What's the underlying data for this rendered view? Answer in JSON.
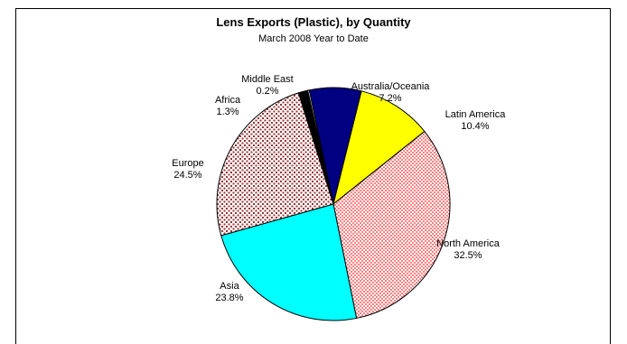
{
  "chart_data": {
    "type": "pie",
    "title": "Lens Exports (Plastic), by Quantity",
    "subtitle": "March 2008 Year to Date",
    "slices": [
      {
        "name": "Australia/Oceania",
        "value": 7.2,
        "label": "7.2%",
        "color": "#000080",
        "pattern": "solid"
      },
      {
        "name": "Latin America",
        "value": 10.4,
        "label": "10.4%",
        "color": "#ffff00",
        "pattern": "solid"
      },
      {
        "name": "North America",
        "value": 32.5,
        "label": "32.5%",
        "color": "#ff9999",
        "pattern": "checker"
      },
      {
        "name": "Asia",
        "value": 23.8,
        "label": "23.8%",
        "color": "#00ffff",
        "pattern": "solid"
      },
      {
        "name": "Europe",
        "value": 24.5,
        "label": "24.5%",
        "color": "#993333",
        "pattern": "dots"
      },
      {
        "name": "Africa",
        "value": 1.3,
        "label": "1.3%",
        "color": "#000000",
        "pattern": "solid"
      },
      {
        "name": "Middle East",
        "value": 0.2,
        "label": "0.2%",
        "color": "#ffffff",
        "pattern": "solid"
      }
    ]
  }
}
